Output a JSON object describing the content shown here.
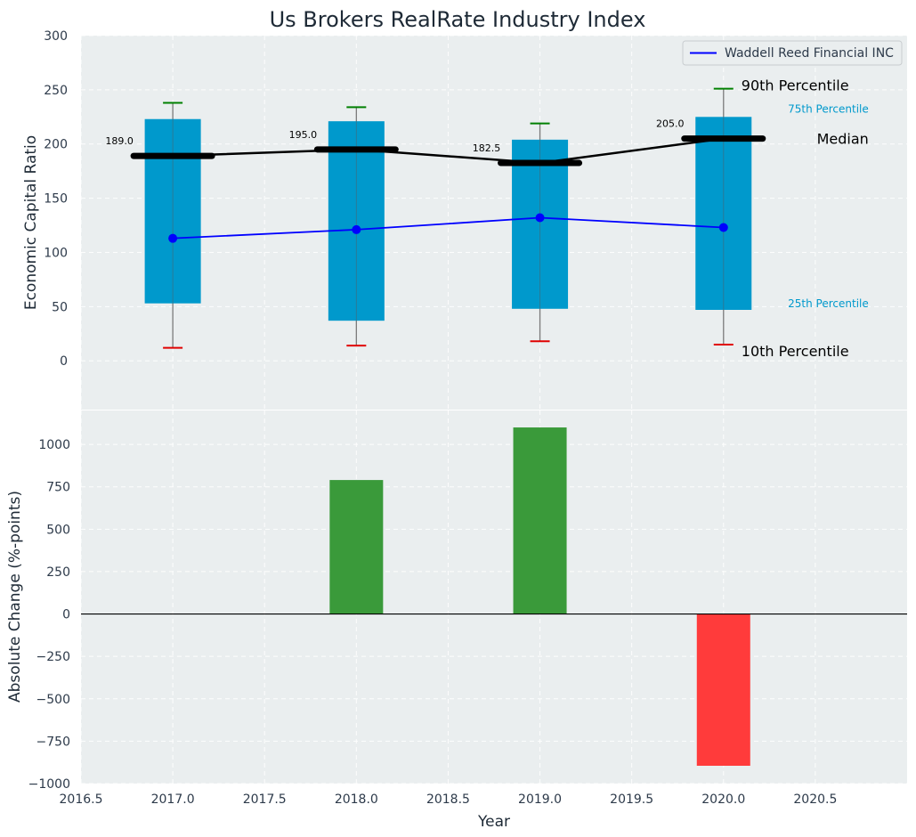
{
  "colors": {
    "panel_bg": "#eaeeef",
    "box": "#0099cc",
    "median": "#000000",
    "whisker_high": "#008000",
    "whisker_low": "#e00000",
    "company_line": "#0000ff",
    "bar_positive": "#3a9a3a",
    "bar_negative": "#ff3b3b"
  },
  "chart_data": [
    {
      "type": "box",
      "title": "Us Brokers RealRate Industry Index",
      "xlabel": "",
      "ylabel": "Economic Capital Ratio",
      "xlim": [
        2016.5,
        2021.0
      ],
      "ylim": [
        -45,
        300
      ],
      "yticks": [
        0,
        50,
        100,
        150,
        200,
        250,
        300
      ],
      "categories": [
        2017.0,
        2018.0,
        2019.0,
        2020.0
      ],
      "p10": [
        12,
        14,
        18,
        15
      ],
      "p25": [
        53,
        37,
        48,
        47
      ],
      "median": [
        189.0,
        195.0,
        182.5,
        205.0
      ],
      "median_labels": [
        "189.0",
        "195.0",
        "182.5",
        "205.0"
      ],
      "p75": [
        223,
        221,
        204,
        225
      ],
      "p90": [
        238,
        234,
        219,
        251
      ],
      "series": [
        {
          "name": "Waddell Reed Financial INC",
          "values": [
            113,
            121,
            132,
            123
          ]
        }
      ],
      "legend": {
        "position": "top-right",
        "entries": [
          "Waddell Reed Financial INC"
        ]
      },
      "annotations": {
        "p90": "90th Percentile",
        "p75": "75th Percentile",
        "median": "Median",
        "p25": "25th Percentile",
        "p10": "10th Percentile"
      },
      "grid": true
    },
    {
      "type": "bar",
      "xlabel": "Year",
      "ylabel": "Absolute Change (%-points)",
      "xlim": [
        2016.5,
        2021.0
      ],
      "ylim": [
        -1000,
        1200
      ],
      "yticks": [
        -1000,
        -750,
        -500,
        -250,
        0,
        250,
        500,
        750,
        1000
      ],
      "xticks": [
        2016.5,
        2017.0,
        2017.5,
        2018.0,
        2018.5,
        2019.0,
        2019.5,
        2020.0,
        2020.5
      ],
      "categories": [
        2017.0,
        2018.0,
        2019.0,
        2020.0
      ],
      "values": [
        0,
        790,
        1100,
        -895
      ],
      "grid": true
    }
  ]
}
